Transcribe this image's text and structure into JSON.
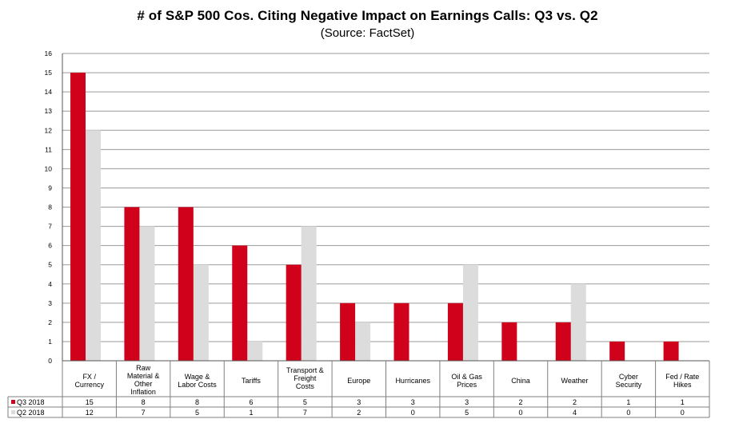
{
  "title": "# of S&P 500 Cos. Citing Negative Impact on Earnings Calls: Q3 vs. Q2",
  "subtitle": "(Source: FactSet)",
  "colors": {
    "q3": "#d0021b",
    "q2": "#dcdcdc",
    "grid": "#9a9a9a",
    "axis": "#555555"
  },
  "chart_data": {
    "type": "bar",
    "title": "# of S&P 500 Cos. Citing Negative Impact on Earnings Calls: Q3 vs. Q2",
    "subtitle": "(Source: FactSet)",
    "categories": [
      [
        "FX /",
        "Currency"
      ],
      [
        "Raw",
        "Material &",
        "Other",
        "Inflation"
      ],
      [
        "Wage &",
        "Labor Costs"
      ],
      [
        "Tariffs"
      ],
      [
        "Transport &",
        "Freight",
        "Costs"
      ],
      [
        "Europe"
      ],
      [
        "Hurricanes"
      ],
      [
        "Oil & Gas",
        "Prices"
      ],
      [
        "China"
      ],
      [
        "Weather"
      ],
      [
        "Cyber",
        "Security"
      ],
      [
        "Fed / Rate",
        "Hikes"
      ]
    ],
    "series": [
      {
        "name": "Q3 2018",
        "values": [
          15,
          8,
          8,
          6,
          5,
          3,
          3,
          3,
          2,
          2,
          1,
          1
        ]
      },
      {
        "name": "Q2 2018",
        "values": [
          12,
          7,
          5,
          1,
          7,
          2,
          0,
          5,
          0,
          4,
          0,
          0
        ]
      }
    ],
    "ylim": [
      0,
      16
    ],
    "yticks": [
      0,
      1,
      2,
      3,
      4,
      5,
      6,
      7,
      8,
      9,
      10,
      11,
      12,
      13,
      14,
      15,
      16
    ],
    "grid": true,
    "legend": "data-table",
    "xlabel": "",
    "ylabel": ""
  }
}
